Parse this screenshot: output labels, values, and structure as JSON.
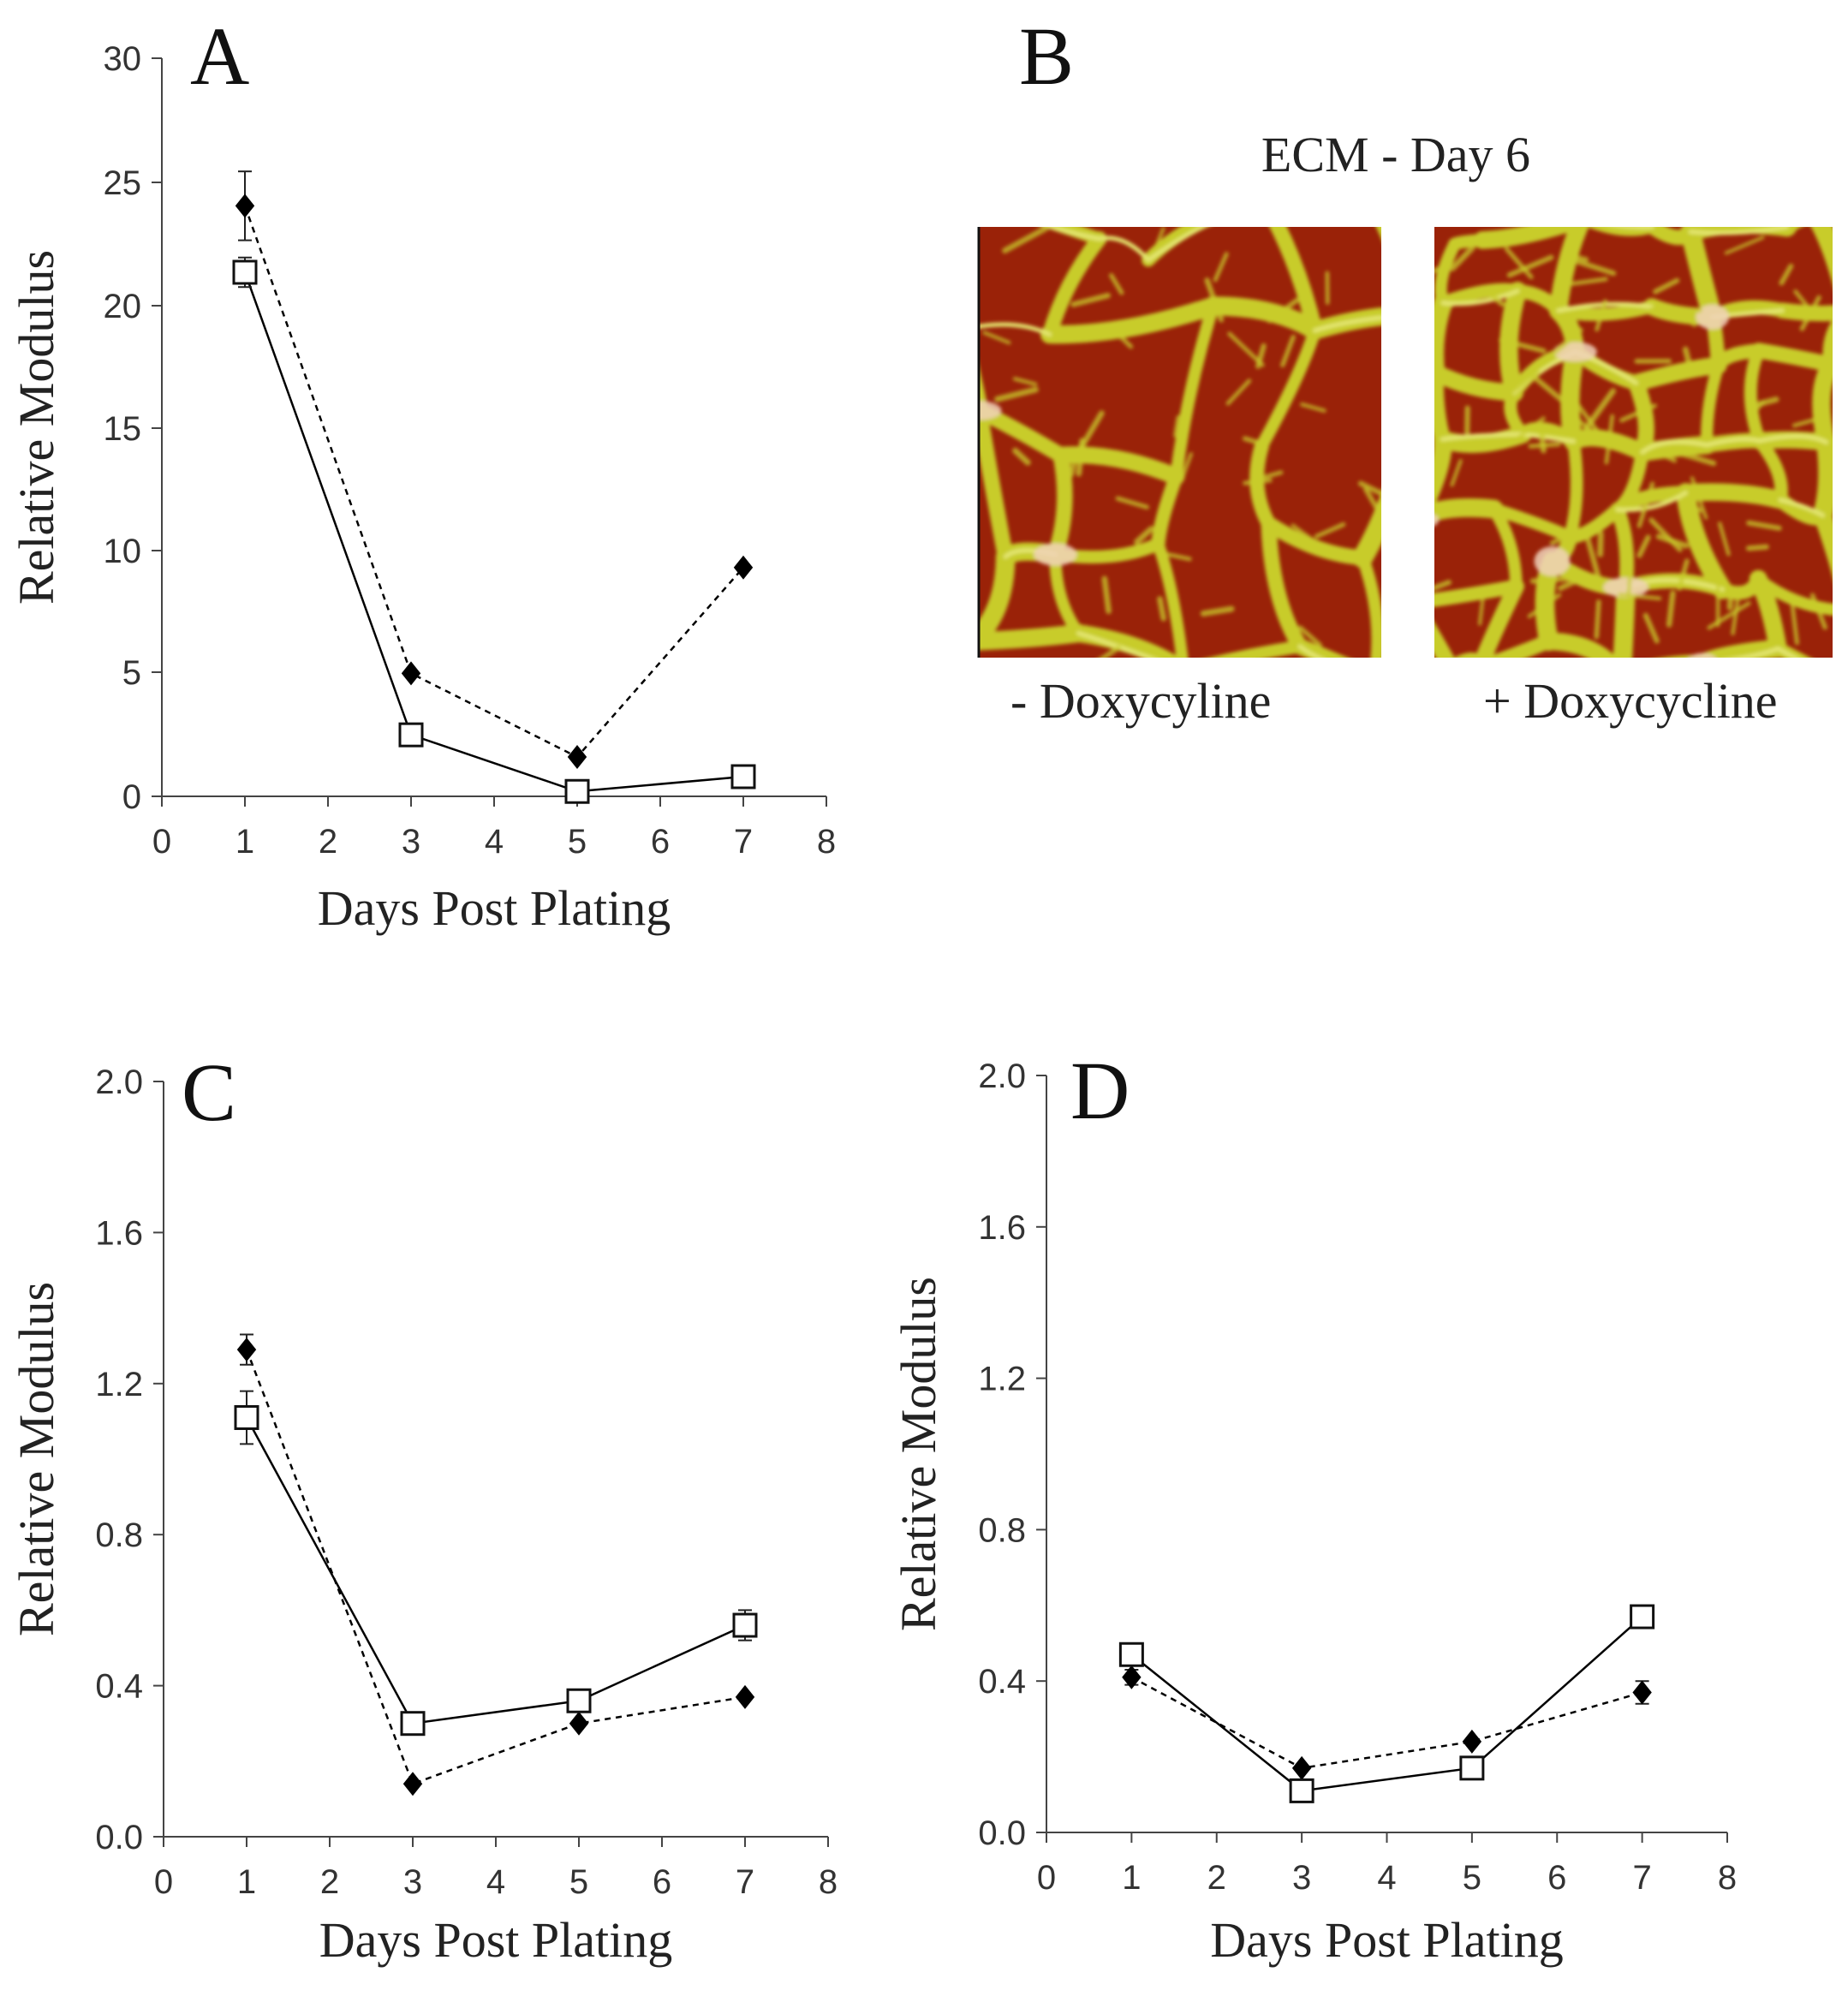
{
  "figure": {
    "panel_b": {
      "letter": "B",
      "title": "ECM - Day 6",
      "images": [
        {
          "caption": "- Doxycyline",
          "seed": 7,
          "dense": false
        },
        {
          "caption": "+ Doxycycline",
          "seed": 23,
          "dense": true
        }
      ],
      "colors": {
        "background": "#9a2208",
        "fiber": "#c8cc2c",
        "fiber_light": "#e4e670",
        "highlight": "#f0d2b8"
      }
    }
  },
  "chart_data": [
    {
      "panel": "A",
      "type": "line",
      "xlabel": "Days Post Plating",
      "ylabel": "Relative Modulus",
      "xlim": [
        0,
        8
      ],
      "ylim": [
        0,
        30
      ],
      "xticks": [
        "0",
        "1",
        "2",
        "3",
        "4",
        "5",
        "6",
        "7",
        "8"
      ],
      "yticks": [
        "0",
        "5",
        "10",
        "15",
        "20",
        "25",
        "30"
      ],
      "grid": false,
      "legend": "none",
      "series": [
        {
          "marker": "filled-diamond",
          "line": "dashed",
          "color": "#000000",
          "x": [
            1,
            3,
            5,
            7
          ],
          "y": [
            24.0,
            5.0,
            1.6,
            9.3
          ],
          "err": [
            1.4,
            0,
            0,
            0
          ]
        },
        {
          "marker": "open-square",
          "line": "solid",
          "color": "#000000",
          "x": [
            1,
            3,
            5,
            7
          ],
          "y": [
            21.3,
            2.5,
            0.2,
            0.8
          ],
          "err": [
            0.6,
            0,
            0,
            0
          ]
        }
      ]
    },
    {
      "panel": "C",
      "type": "line",
      "xlabel": "Days Post Plating",
      "ylabel": "Relative Modulus",
      "xlim": [
        0,
        8
      ],
      "ylim": [
        0,
        2
      ],
      "xticks": [
        "0",
        "1",
        "2",
        "3",
        "4",
        "5",
        "6",
        "7",
        "8"
      ],
      "yticks": [
        "0.0",
        "0.4",
        "0.8",
        "1.2",
        "1.6",
        "2.0"
      ],
      "grid": false,
      "legend": "none",
      "series": [
        {
          "marker": "filled-diamond",
          "line": "dashed",
          "color": "#000000",
          "x": [
            1,
            3,
            5,
            7
          ],
          "y": [
            1.29,
            0.14,
            0.3,
            0.37
          ],
          "err": [
            0.04,
            0,
            0,
            0
          ]
        },
        {
          "marker": "open-square",
          "line": "solid",
          "color": "#000000",
          "x": [
            1,
            3,
            5,
            7
          ],
          "y": [
            1.11,
            0.3,
            0.36,
            0.56
          ],
          "err": [
            0.07,
            0,
            0,
            0.04
          ]
        }
      ]
    },
    {
      "panel": "D",
      "type": "line",
      "xlabel": "Days Post Plating",
      "ylabel": "Relative Modulus",
      "xlim": [
        0,
        8
      ],
      "ylim": [
        0,
        2
      ],
      "xticks": [
        "0",
        "1",
        "2",
        "3",
        "4",
        "5",
        "6",
        "7",
        "8"
      ],
      "yticks": [
        "0.0",
        "0.4",
        "0.8",
        "1.2",
        "1.6",
        "2.0"
      ],
      "grid": false,
      "legend": "none",
      "series": [
        {
          "marker": "filled-diamond",
          "line": "dashed",
          "color": "#000000",
          "x": [
            1,
            3,
            5,
            7
          ],
          "y": [
            0.41,
            0.17,
            0.24,
            0.37
          ],
          "err": [
            0.02,
            0,
            0,
            0.03
          ]
        },
        {
          "marker": "open-square",
          "line": "solid",
          "color": "#000000",
          "x": [
            1,
            3,
            5,
            7
          ],
          "y": [
            0.47,
            0.11,
            0.17,
            0.57
          ],
          "err": [
            0,
            0,
            0,
            0
          ]
        }
      ]
    }
  ]
}
